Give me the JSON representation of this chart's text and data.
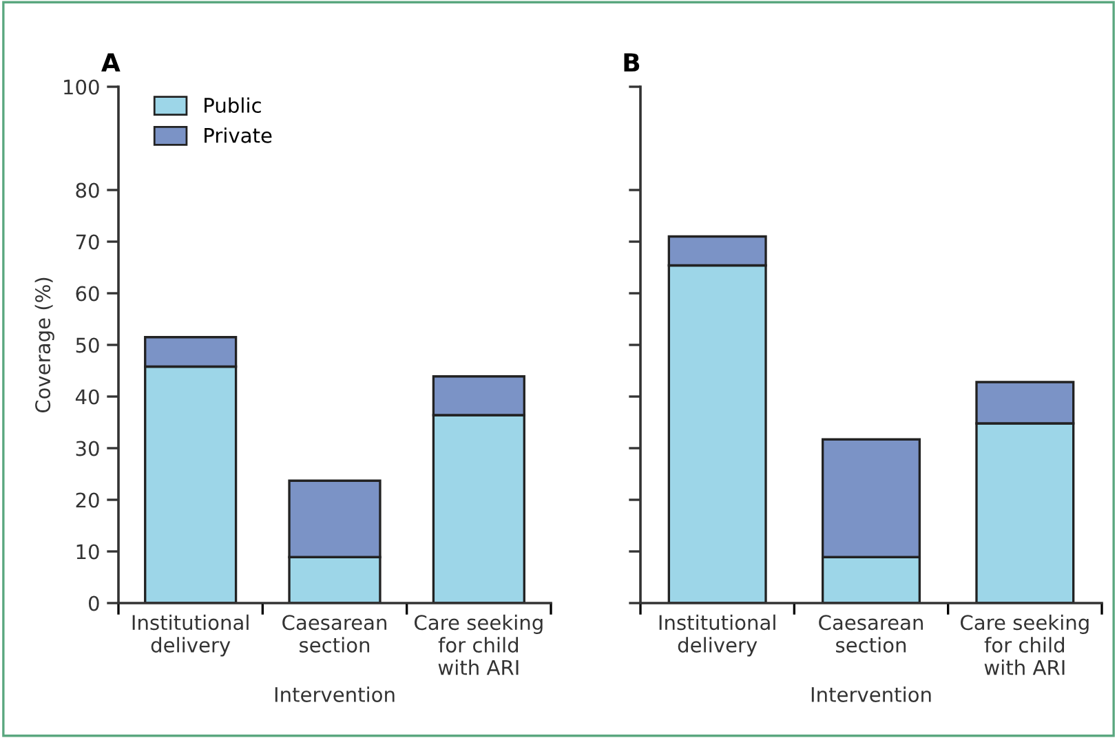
{
  "chart_data": [
    {
      "type": "bar",
      "title": "A",
      "xlabel": "Intervention",
      "ylabel": "Coverage (%)",
      "stacked": true,
      "legend": "top left",
      "categories": [
        "Institutional\ndelivery",
        "Caesarean\nsection",
        "Care seeking\nfor child\nwith ARI"
      ],
      "series": [
        {
          "name": "Public",
          "color": "#9dd6e8",
          "values": [
            45.8,
            8.9,
            36.4
          ]
        },
        {
          "name": "Private",
          "color": "#7b93c6",
          "values": [
            5.7,
            14.8,
            7.5
          ]
        }
      ],
      "ylim": [
        0,
        100
      ],
      "yticks": [
        0,
        10,
        20,
        30,
        40,
        50,
        60,
        70,
        80,
        100
      ]
    },
    {
      "type": "bar",
      "title": "B",
      "xlabel": "Intervention",
      "stacked": true,
      "tick_labels": "x",
      "categories": [
        "Institutional\ndelivery",
        "Caesarean\nsection",
        "Care seeking\nfor child\nwith ARI"
      ],
      "series": [
        {
          "color": "#9dd6e8",
          "values": [
            65.4,
            8.9,
            34.8
          ]
        },
        {
          "color": "#7b93c6",
          "values": [
            5.6,
            22.8,
            8.0
          ]
        }
      ],
      "ylim": [
        0,
        100
      ],
      "yticks": [
        0,
        10,
        20,
        30,
        40,
        50,
        60,
        70,
        80,
        100
      ]
    }
  ]
}
